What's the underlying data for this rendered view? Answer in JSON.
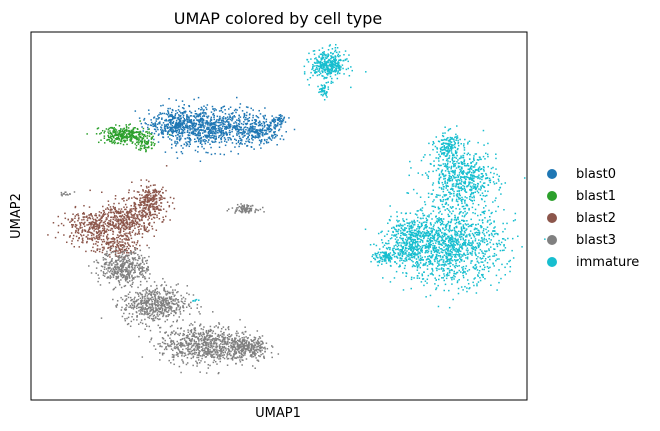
{
  "chart_data": {
    "type": "scatter",
    "title": "UMAP colored by cell type",
    "xlabel": "UMAP1",
    "ylabel": "UMAP2",
    "grid": false,
    "ticks": false,
    "legend_position": "right",
    "xlim": [
      0,
      100
    ],
    "ylim": [
      0,
      100
    ],
    "series": [
      {
        "name": "blast0",
        "color": "#1f77b4",
        "clusters": [
          {
            "cx": 36,
            "cy": 74,
            "rx": 11,
            "ry": 5.5,
            "n": 850
          },
          {
            "cx": 29,
            "cy": 75,
            "rx": 5,
            "ry": 3.5,
            "n": 220
          },
          {
            "cx": 46,
            "cy": 73,
            "rx": 4,
            "ry": 3,
            "n": 200
          },
          {
            "cx": 50,
            "cy": 76,
            "rx": 2,
            "ry": 1.2,
            "n": 40
          }
        ]
      },
      {
        "name": "blast1",
        "color": "#2ca02c",
        "clusters": [
          {
            "cx": 19,
            "cy": 72,
            "rx": 5,
            "ry": 2.3,
            "n": 300
          },
          {
            "cx": 23,
            "cy": 69.5,
            "rx": 2,
            "ry": 2,
            "n": 60
          }
        ]
      },
      {
        "name": "blast2",
        "color": "#8c564b",
        "clusters": [
          {
            "cx": 12,
            "cy": 47,
            "rx": 5.5,
            "ry": 4.5,
            "n": 280
          },
          {
            "cx": 19,
            "cy": 49,
            "rx": 6,
            "ry": 5,
            "n": 400
          },
          {
            "cx": 24,
            "cy": 54,
            "rx": 3.5,
            "ry": 4.5,
            "n": 250
          },
          {
            "cx": 17,
            "cy": 42,
            "rx": 4,
            "ry": 3,
            "n": 150
          }
        ]
      },
      {
        "name": "blast3",
        "color": "#808080",
        "clusters": [
          {
            "cx": 19,
            "cy": 36,
            "rx": 5,
            "ry": 4.5,
            "n": 400
          },
          {
            "cx": 25,
            "cy": 26,
            "rx": 6.5,
            "ry": 5,
            "n": 550
          },
          {
            "cx": 35,
            "cy": 15,
            "rx": 9,
            "ry": 5,
            "n": 750
          },
          {
            "cx": 44,
            "cy": 14,
            "rx": 4,
            "ry": 3.5,
            "n": 250
          },
          {
            "cx": 43,
            "cy": 52,
            "rx": 2.5,
            "ry": 1,
            "n": 90
          },
          {
            "cx": 7,
            "cy": 56,
            "rx": 1.5,
            "ry": 0.5,
            "n": 15
          }
        ]
      },
      {
        "name": "immature",
        "color": "#17becf",
        "clusters": [
          {
            "cx": 60,
            "cy": 91,
            "rx": 3.5,
            "ry": 4,
            "n": 350
          },
          {
            "cx": 59,
            "cy": 84,
            "rx": 1,
            "ry": 2,
            "n": 40
          },
          {
            "cx": 84,
            "cy": 42,
            "rx": 11,
            "ry": 10,
            "n": 1300
          },
          {
            "cx": 87,
            "cy": 60,
            "rx": 7,
            "ry": 8,
            "n": 600
          },
          {
            "cx": 76,
            "cy": 44,
            "rx": 4,
            "ry": 6,
            "n": 250
          },
          {
            "cx": 72,
            "cy": 39,
            "rx": 3,
            "ry": 2,
            "n": 120
          },
          {
            "cx": 84,
            "cy": 69,
            "rx": 2.5,
            "ry": 4,
            "n": 150
          },
          {
            "cx": 33,
            "cy": 27,
            "rx": 0.7,
            "ry": 0.5,
            "n": 6
          }
        ]
      }
    ]
  }
}
